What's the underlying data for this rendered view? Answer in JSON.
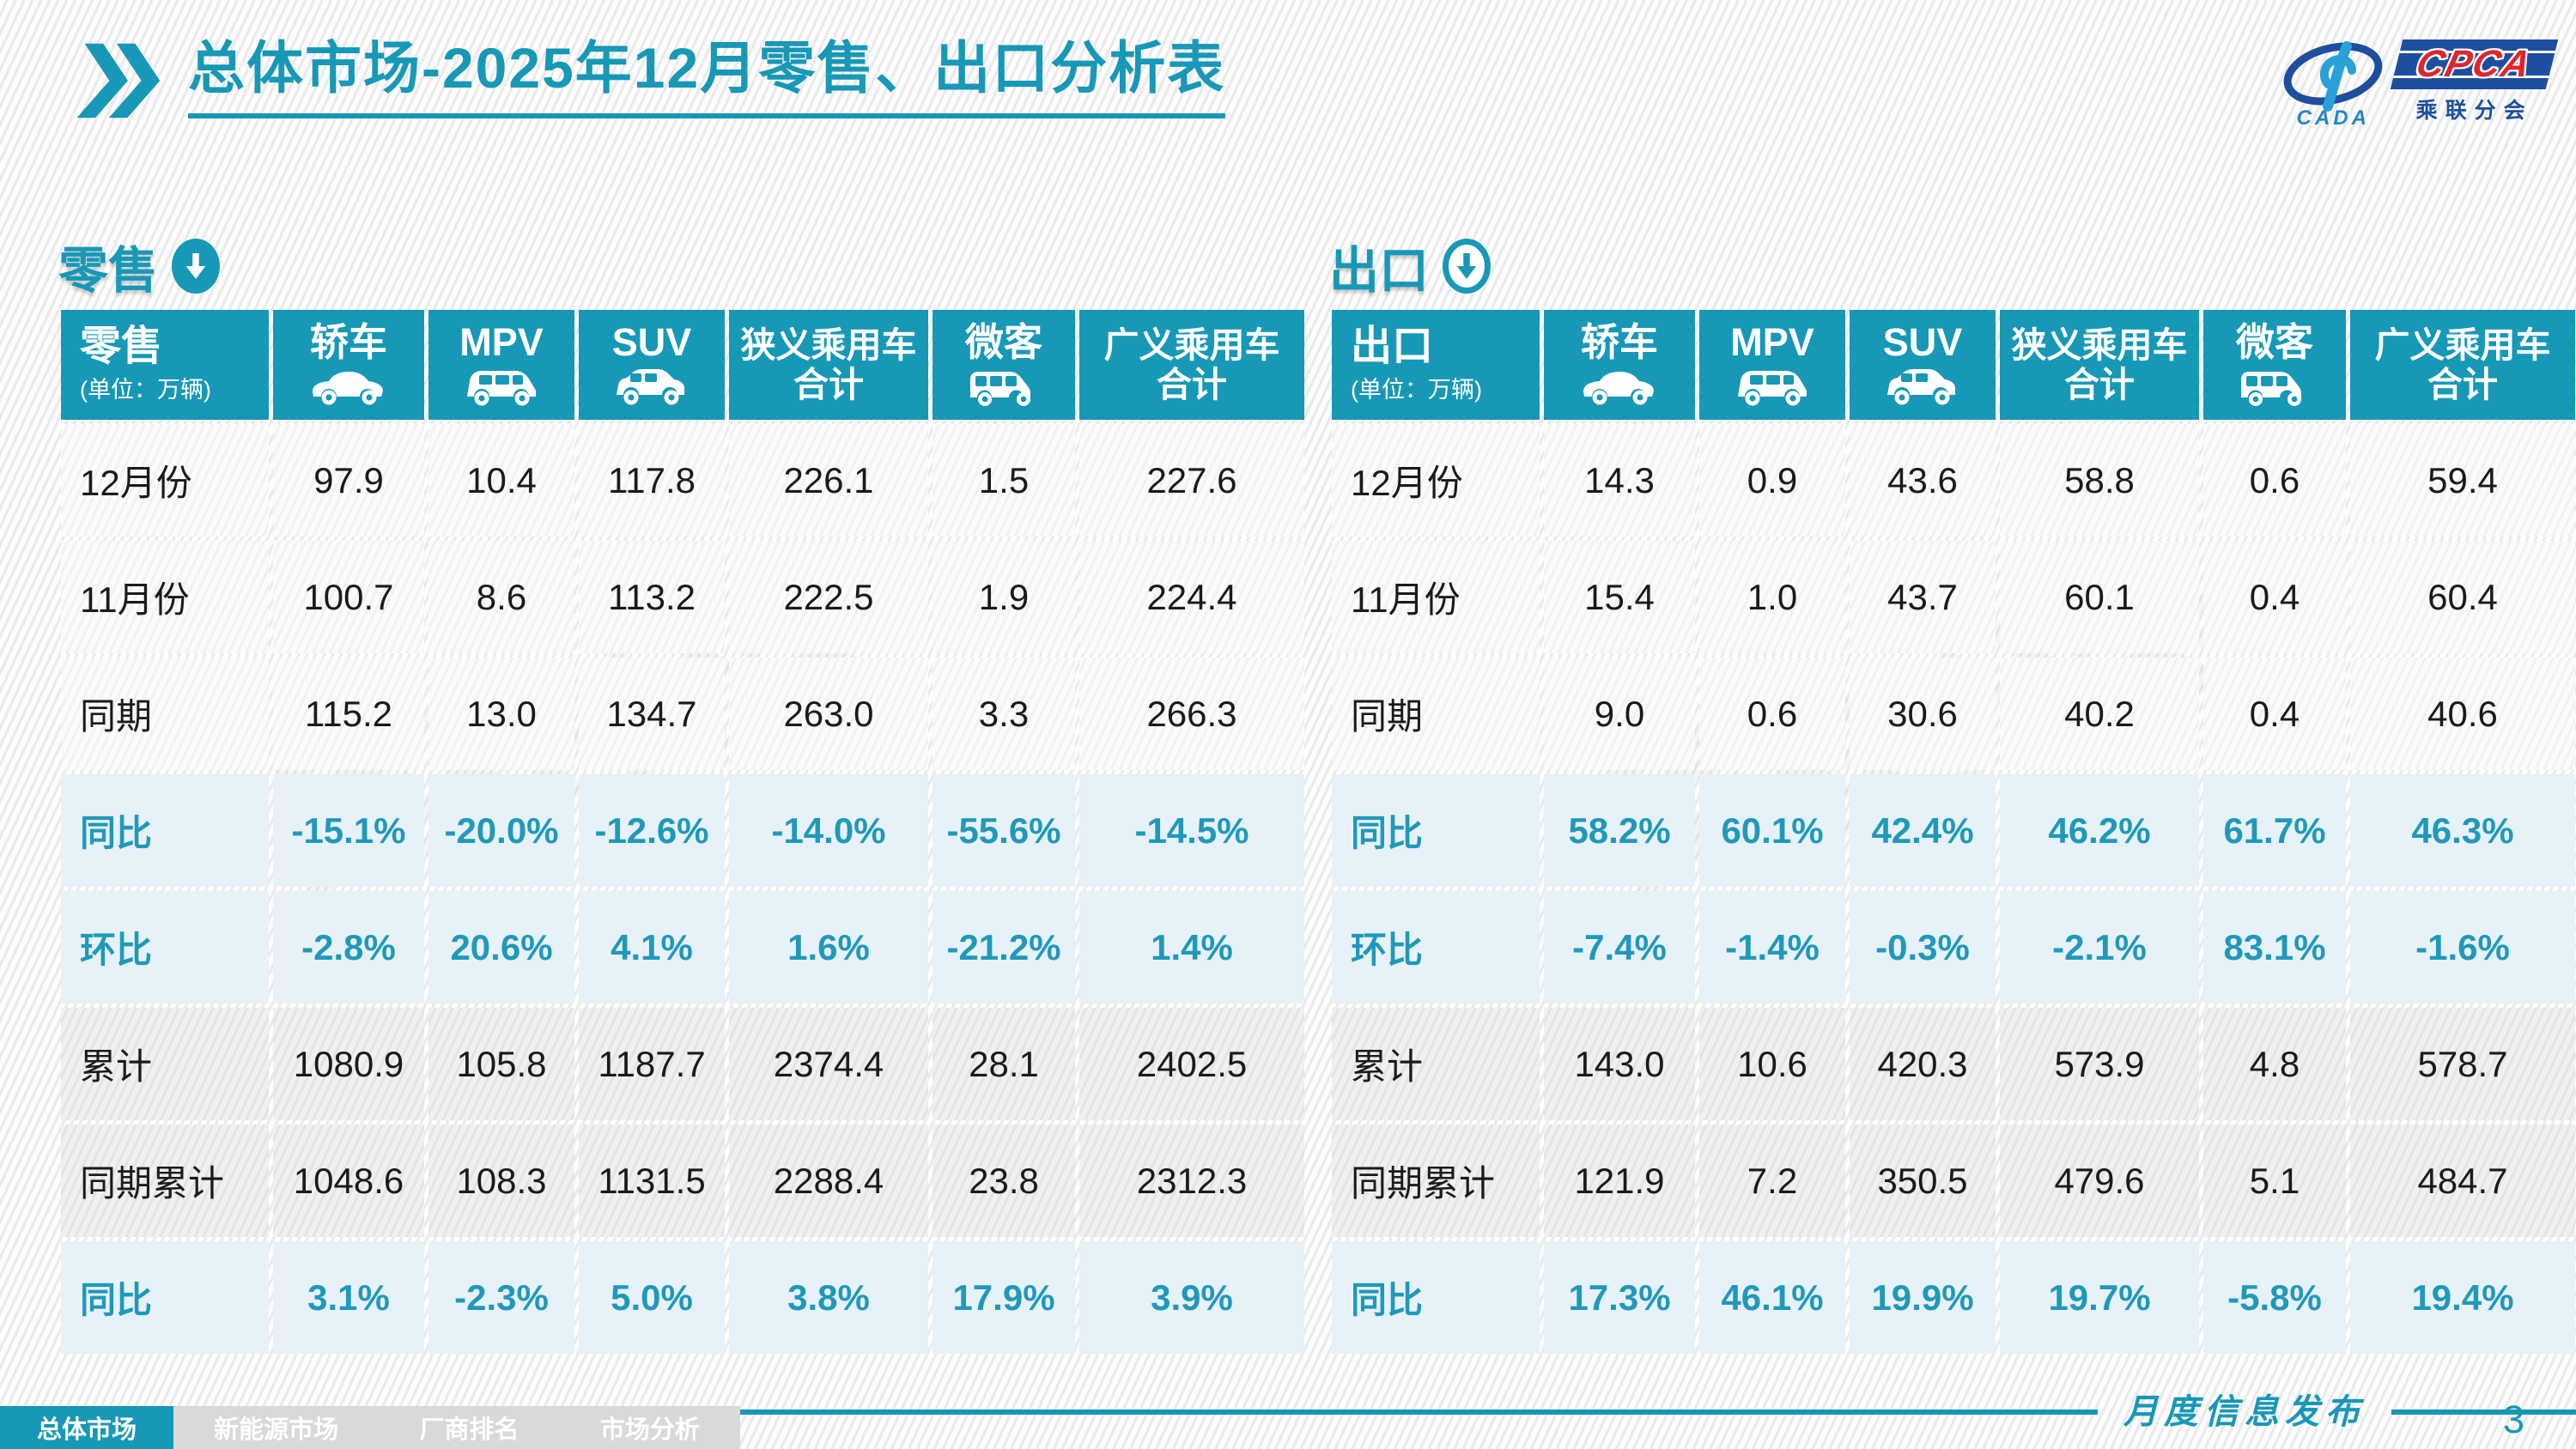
{
  "page": {
    "title": "总体市场-2025年12月零售、出口分析表",
    "publish_label": "月度信息发布",
    "page_number": "3"
  },
  "logo": {
    "cada_text": "CADA",
    "cpca_text": "CPCA",
    "cpca_sub": "乘联分会"
  },
  "colors": {
    "accent": "#1798b7",
    "accent_text": "#1f99ba",
    "logo_blue": "#1d4f9e",
    "logo_red": "#e0252b",
    "percent_row_bg": "#e7f1f8"
  },
  "footer_nav": [
    {
      "label": "总体市场",
      "active": true
    },
    {
      "label": "新能源市场",
      "active": false
    },
    {
      "label": "厂商排名",
      "active": false
    },
    {
      "label": "市场分析",
      "active": false
    }
  ],
  "tables": [
    {
      "id": "retail",
      "section_title": "零售",
      "corner_title": "零售",
      "unit": "(单位：万辆)",
      "columns": [
        {
          "label": "轿车",
          "icon": "sedan"
        },
        {
          "label": "MPV",
          "icon": "mpv"
        },
        {
          "label": "SUV",
          "icon": "suv"
        },
        {
          "label": "狭义乘用车",
          "label2": "合计",
          "icon": null
        },
        {
          "label": "微客",
          "icon": "microvan"
        },
        {
          "label": "广义乘用车",
          "label2": "合计",
          "icon": null
        }
      ],
      "rows": [
        {
          "label": "12月份",
          "style": "plain",
          "values": [
            "97.9",
            "10.4",
            "117.8",
            "226.1",
            "1.5",
            "227.6"
          ]
        },
        {
          "label": "11月份",
          "style": "plain",
          "values": [
            "100.7",
            "8.6",
            "113.2",
            "222.5",
            "1.9",
            "224.4"
          ]
        },
        {
          "label": "同期",
          "style": "plain",
          "values": [
            "115.2",
            "13.0",
            "134.7",
            "263.0",
            "3.3",
            "266.3"
          ]
        },
        {
          "label": "同比",
          "style": "percent",
          "values": [
            "-15.1%",
            "-20.0%",
            "-12.6%",
            "-14.0%",
            "-55.6%",
            "-14.5%"
          ]
        },
        {
          "label": "环比",
          "style": "percent",
          "values": [
            "-2.8%",
            "20.6%",
            "4.1%",
            "1.6%",
            "-21.2%",
            "1.4%"
          ]
        },
        {
          "label": "累计",
          "style": "gray",
          "values": [
            "1080.9",
            "105.8",
            "1187.7",
            "2374.4",
            "28.1",
            "2402.5"
          ]
        },
        {
          "label": "同期累计",
          "style": "gray",
          "values": [
            "1048.6",
            "108.3",
            "1131.5",
            "2288.4",
            "23.8",
            "2312.3"
          ]
        },
        {
          "label": "同比",
          "style": "percent",
          "values": [
            "3.1%",
            "-2.3%",
            "5.0%",
            "3.8%",
            "17.9%",
            "3.9%"
          ]
        }
      ]
    },
    {
      "id": "export",
      "section_title": "出口",
      "corner_title": "出口",
      "unit": "(单位：万辆)",
      "columns": [
        {
          "label": "轿车",
          "icon": "sedan"
        },
        {
          "label": "MPV",
          "icon": "mpv"
        },
        {
          "label": "SUV",
          "icon": "suv"
        },
        {
          "label": "狭义乘用车",
          "label2": "合计",
          "icon": null
        },
        {
          "label": "微客",
          "icon": "microvan"
        },
        {
          "label": "广义乘用车",
          "label2": "合计",
          "icon": null
        }
      ],
      "rows": [
        {
          "label": "12月份",
          "style": "plain",
          "values": [
            "14.3",
            "0.9",
            "43.6",
            "58.8",
            "0.6",
            "59.4"
          ]
        },
        {
          "label": "11月份",
          "style": "plain",
          "values": [
            "15.4",
            "1.0",
            "43.7",
            "60.1",
            "0.4",
            "60.4"
          ]
        },
        {
          "label": "同期",
          "style": "plain",
          "values": [
            "9.0",
            "0.6",
            "30.6",
            "40.2",
            "0.4",
            "40.6"
          ]
        },
        {
          "label": "同比",
          "style": "percent",
          "values": [
            "58.2%",
            "60.1%",
            "42.4%",
            "46.2%",
            "61.7%",
            "46.3%"
          ]
        },
        {
          "label": "环比",
          "style": "percent",
          "values": [
            "-7.4%",
            "-1.4%",
            "-0.3%",
            "-2.1%",
            "83.1%",
            "-1.6%"
          ]
        },
        {
          "label": "累计",
          "style": "gray",
          "values": [
            "143.0",
            "10.6",
            "420.3",
            "573.9",
            "4.8",
            "578.7"
          ]
        },
        {
          "label": "同期累计",
          "style": "gray",
          "values": [
            "121.9",
            "7.2",
            "350.5",
            "479.6",
            "5.1",
            "484.7"
          ]
        },
        {
          "label": "同比",
          "style": "percent",
          "values": [
            "17.3%",
            "46.1%",
            "19.9%",
            "19.7%",
            "-5.8%",
            "19.4%"
          ]
        }
      ]
    }
  ]
}
